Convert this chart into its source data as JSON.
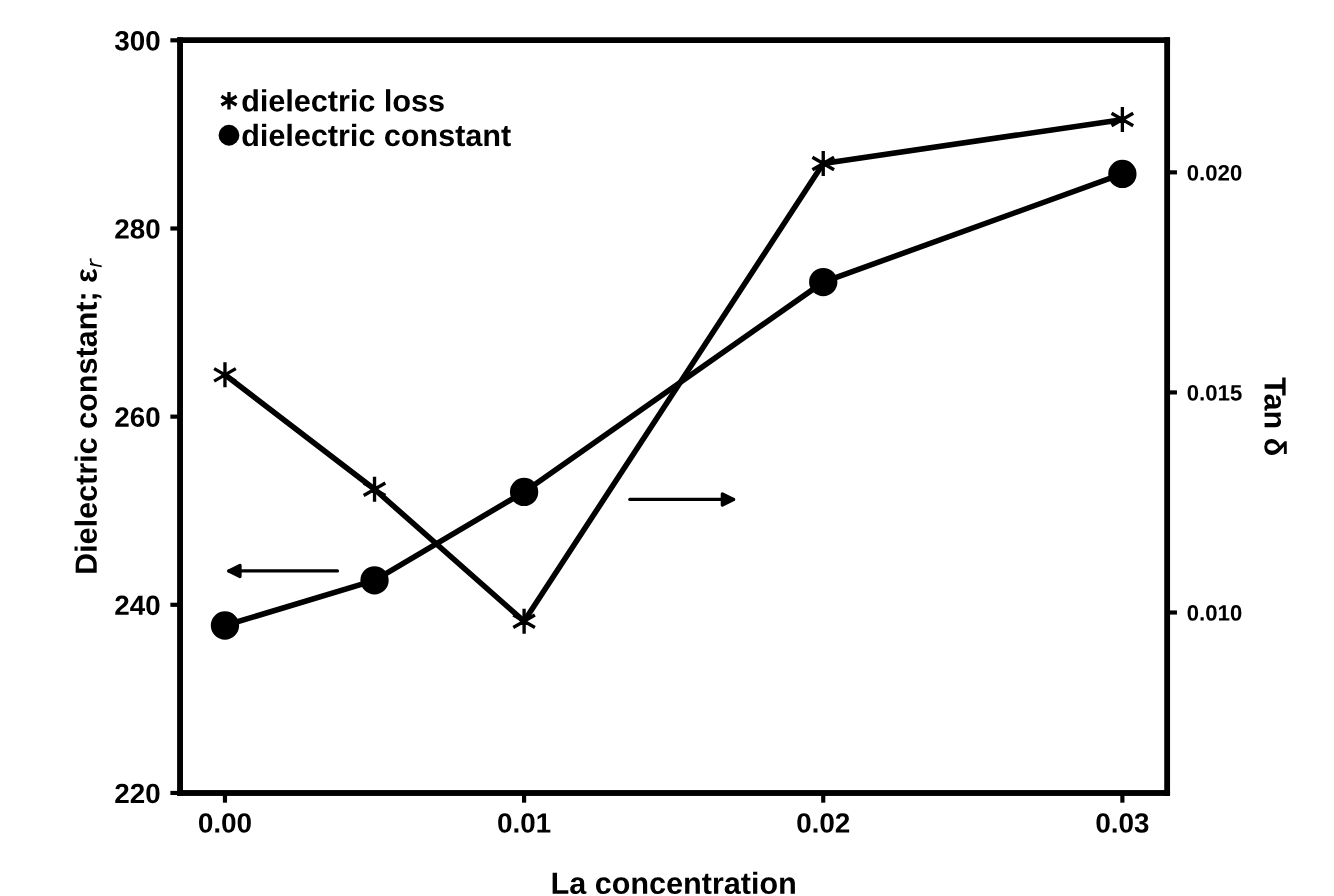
{
  "chart_data": {
    "type": "line",
    "xlabel": "La concentration",
    "ylabel": "Dielectric constant; ε$_{r}$",
    "y2label": "Tan δ",
    "x": [
      0.0,
      0.005,
      0.01,
      0.02,
      0.03
    ],
    "series": [
      {
        "name": "dielectric loss",
        "color": "#000000",
        "marker": "cross",
        "axis": "y2",
        "values": [
          0.0154,
          0.0128,
          0.0098,
          0.0202,
          0.0212
        ]
      },
      {
        "name": "dielectric constant",
        "color": "#000000",
        "marker": "circle",
        "values": [
          237.8,
          242.6,
          252.0,
          274.3,
          285.8
        ]
      }
    ],
    "xlim": [
      -0.0015,
      0.0315
    ],
    "xticks": [
      {
        "value": 0,
        "label": "0.00"
      },
      {
        "value": 0.01,
        "label": "0.01"
      },
      {
        "value": 0.02,
        "label": "0.02"
      },
      {
        "value": 0.03,
        "label": "0.03"
      }
    ],
    "ylim": [
      220,
      300
    ],
    "yticks": [
      220,
      240,
      260,
      280,
      300
    ],
    "y2lim": [
      0.0059,
      0.023
    ],
    "y2ticks": [
      {
        "value": 0.01,
        "label": "0.010"
      },
      {
        "value": 0.015,
        "label": "0.015"
      },
      {
        "value": 0.02,
        "label": "0.020"
      }
    ],
    "legend": "top left",
    "grid": false,
    "line_style": "solid"
  }
}
